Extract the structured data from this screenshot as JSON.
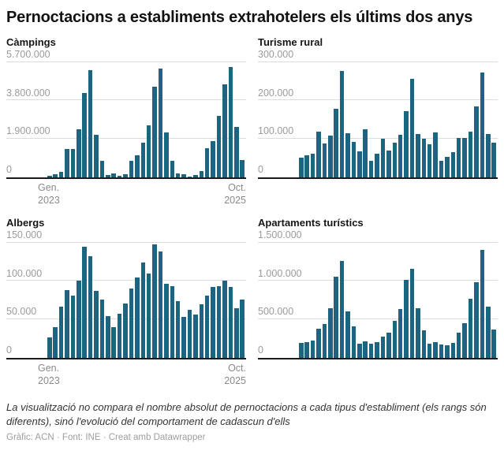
{
  "title": "Pernoctacions a establiments extrahotelers els últims dos anys",
  "colors": {
    "bar": "#1d6480",
    "gridline": "#dcdcdc",
    "axis_line": "#1a1a1a",
    "tick_label": "#9b9b9b",
    "x_label": "#8a8a8a"
  },
  "footer": {
    "note": "La visualització no compara el nombre absolut de pernoctacions a cada tipus d'establiment (els rangs són diferents), sinó l'evolució del comportament de cadascun d'ells",
    "credit": "Gràfic: ACN · Font: INE · Creat amb Datawrapper"
  },
  "chart_data": [
    {
      "type": "bar",
      "title": "Càmpings",
      "x_start": "Gen. 2023",
      "x_end": "Oct. 2025",
      "n_points": 34,
      "grid": true,
      "ylim": [
        0,
        5700000
      ],
      "yticks": [
        {
          "label": "5.700.000",
          "value": 5700000
        },
        {
          "label": "3.800.000",
          "value": 3800000
        },
        {
          "label": "1.900.000",
          "value": 1900000
        },
        {
          "label": "0",
          "value": 0
        }
      ],
      "xticks": [
        "Gen. 2023",
        "Oct. 2025"
      ],
      "x": [
        "2023-01",
        "2023-02",
        "2023-03",
        "2023-04",
        "2023-05",
        "2023-06",
        "2023-07",
        "2023-08",
        "2023-09",
        "2023-10",
        "2023-11",
        "2023-12",
        "2024-01",
        "2024-02",
        "2024-03",
        "2024-04",
        "2024-05",
        "2024-06",
        "2024-07",
        "2024-08",
        "2024-09",
        "2024-10",
        "2024-11",
        "2024-12",
        "2025-01",
        "2025-02",
        "2025-03",
        "2025-04",
        "2025-05",
        "2025-06",
        "2025-07",
        "2025-08",
        "2025-09",
        "2025-10"
      ],
      "values": [
        65000,
        130000,
        260000,
        1400000,
        1400000,
        2370000,
        4150000,
        5310000,
        2100000,
        800000,
        120000,
        170000,
        65000,
        130000,
        790000,
        1070000,
        1700000,
        2550000,
        4480000,
        5370000,
        2200000,
        790000,
        170000,
        130000,
        40000,
        90000,
        290000,
        1440000,
        1770000,
        3050000,
        4590000,
        5440000,
        2490000,
        850000
      ]
    },
    {
      "type": "bar",
      "title": "Turisme rural",
      "x_start": "Gen. 2023",
      "x_end": "Oct. 2025",
      "n_points": 34,
      "grid": true,
      "ylim": [
        0,
        300000
      ],
      "yticks": [
        {
          "label": "300.000",
          "value": 300000
        },
        {
          "label": "200.000",
          "value": 200000
        },
        {
          "label": "100.000",
          "value": 100000
        },
        {
          "label": "0",
          "value": 0
        }
      ],
      "xticks": [],
      "x": [
        "2023-01",
        "2023-02",
        "2023-03",
        "2023-04",
        "2023-05",
        "2023-06",
        "2023-07",
        "2023-08",
        "2023-09",
        "2023-10",
        "2023-11",
        "2023-12",
        "2024-01",
        "2024-02",
        "2024-03",
        "2024-04",
        "2024-05",
        "2024-06",
        "2024-07",
        "2024-08",
        "2024-09",
        "2024-10",
        "2024-11",
        "2024-12",
        "2025-01",
        "2025-02",
        "2025-03",
        "2025-04",
        "2025-05",
        "2025-06",
        "2025-07",
        "2025-08",
        "2025-09",
        "2025-10"
      ],
      "values": [
        51000,
        57000,
        60000,
        118000,
        87000,
        108000,
        178000,
        276000,
        114000,
        92000,
        68000,
        124000,
        42000,
        61000,
        100000,
        70000,
        90000,
        110000,
        171000,
        257000,
        112000,
        100000,
        86000,
        116000,
        43000,
        53000,
        66000,
        103000,
        102000,
        118000,
        184000,
        272000,
        113000,
        90000
      ]
    },
    {
      "type": "bar",
      "title": "Albergs",
      "x_start": "Gen. 2023",
      "x_end": "Oct. 2025",
      "n_points": 34,
      "grid": true,
      "ylim": [
        0,
        150000
      ],
      "yticks": [
        {
          "label": "150.000",
          "value": 150000
        },
        {
          "label": "100.000",
          "value": 100000
        },
        {
          "label": "50.000",
          "value": 50000
        },
        {
          "label": "0",
          "value": 0
        }
      ],
      "xticks": [
        "Gen. 2023",
        "Oct. 2025"
      ],
      "x": [
        "2023-01",
        "2023-02",
        "2023-03",
        "2023-04",
        "2023-05",
        "2023-06",
        "2023-07",
        "2023-08",
        "2023-09",
        "2023-10",
        "2023-11",
        "2023-12",
        "2024-01",
        "2024-02",
        "2024-03",
        "2024-04",
        "2024-05",
        "2024-06",
        "2024-07",
        "2024-08",
        "2024-09",
        "2024-10",
        "2024-11",
        "2024-12",
        "2025-01",
        "2025-02",
        "2025-03",
        "2025-04",
        "2025-05",
        "2025-06",
        "2025-07",
        "2025-08",
        "2025-09",
        "2025-10"
      ],
      "values": [
        26000,
        40000,
        66000,
        88000,
        81000,
        100000,
        145000,
        132000,
        87000,
        76000,
        54000,
        40000,
        57000,
        71000,
        90000,
        104000,
        124000,
        110000,
        148000,
        138000,
        96000,
        93000,
        74000,
        53000,
        62000,
        56000,
        69000,
        81000,
        92000,
        93000,
        100000,
        92000,
        64000,
        76000
      ]
    },
    {
      "type": "bar",
      "title": "Apartaments turístics",
      "x_start": "Gen. 2023",
      "x_end": "Oct. 2025",
      "n_points": 34,
      "grid": true,
      "ylim": [
        0,
        1500000
      ],
      "yticks": [
        {
          "label": "1.500.000",
          "value": 1500000
        },
        {
          "label": "1.000.000",
          "value": 1000000
        },
        {
          "label": "500.000",
          "value": 500000
        },
        {
          "label": "0",
          "value": 0
        }
      ],
      "xticks": [],
      "x": [
        "2023-01",
        "2023-02",
        "2023-03",
        "2023-04",
        "2023-05",
        "2023-06",
        "2023-07",
        "2023-08",
        "2023-09",
        "2023-10",
        "2023-11",
        "2023-12",
        "2024-01",
        "2024-02",
        "2024-03",
        "2024-04",
        "2024-05",
        "2024-06",
        "2024-07",
        "2024-08",
        "2024-09",
        "2024-10",
        "2024-11",
        "2024-12",
        "2025-01",
        "2025-02",
        "2025-03",
        "2025-04",
        "2025-05",
        "2025-06",
        "2025-07",
        "2025-08",
        "2025-09",
        "2025-10"
      ],
      "values": [
        191000,
        198000,
        221000,
        372000,
        440000,
        644000,
        1057000,
        1265000,
        607000,
        409000,
        178000,
        211000,
        185000,
        205000,
        278000,
        322000,
        480000,
        638000,
        1010000,
        1158000,
        648000,
        359000,
        185000,
        205000,
        171000,
        161000,
        195000,
        329000,
        446000,
        772000,
        983000,
        1403000,
        664000,
        369000
      ]
    }
  ]
}
